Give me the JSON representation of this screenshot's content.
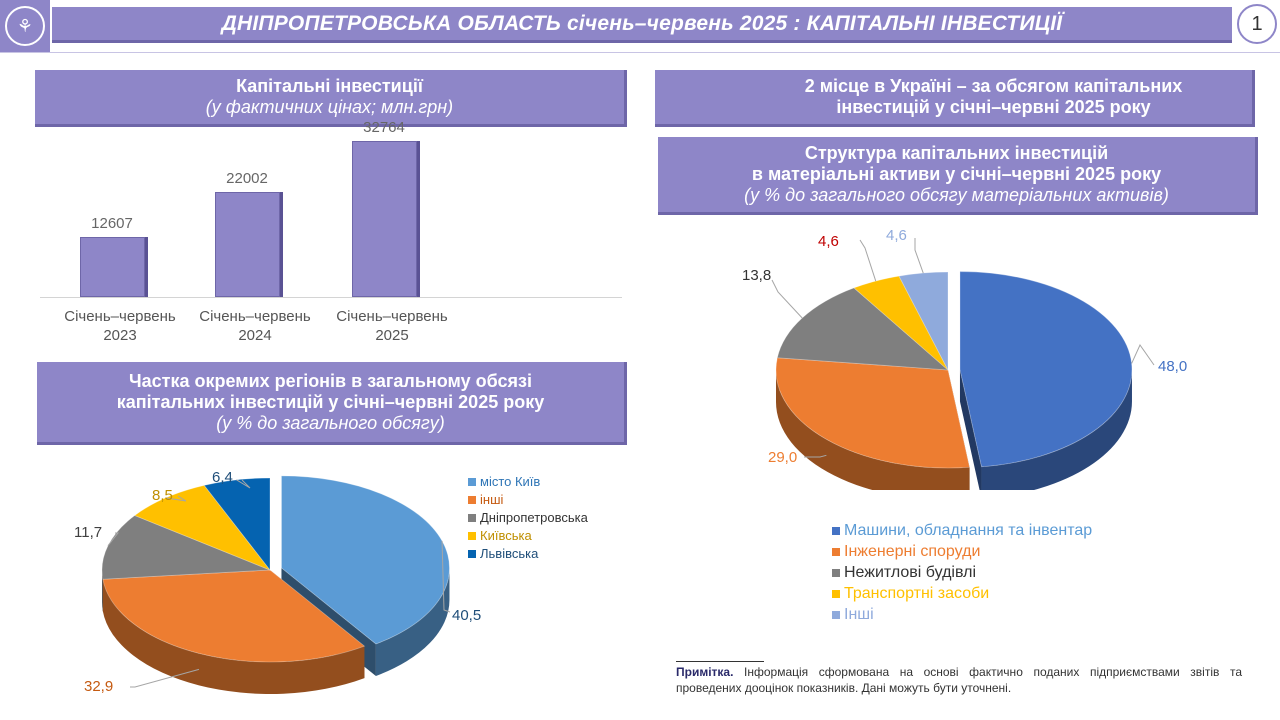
{
  "header": {
    "title": "ДНІПРОПЕТРОВСЬКА ОБЛАСТЬ січень–червень 2025 : КАПІТАЛЬНІ ІНВЕСТИЦІЇ",
    "page_number": "1"
  },
  "panels": {
    "capital_title": "Капітальні інвестиції",
    "capital_subtitle": "(у фактичних цінах; млн.грн)",
    "rank_line1": "2 місце в Україні – за обсягом капітальних",
    "rank_line2": "інвестицій у січні–червні 2025 року",
    "structure_line1": "Структура капітальних інвестицій",
    "structure_line2": "в матеріальні активи у січні–червні 2025 року",
    "structure_subtitle": "(у % до загального обсягу матеріальних активів)",
    "regions_line1": "Частка окремих регіонів в загальному обсязі",
    "regions_line2": "капітальних інвестицій у січні–червні 2025 року",
    "regions_subtitle": "(у % до загального обсягу)"
  },
  "chart_data": [
    {
      "type": "bar",
      "categories": [
        [
          "Січень–червень",
          "2023"
        ],
        [
          "Січень–червень",
          "2024"
        ],
        [
          "Січень–червень",
          "2025"
        ]
      ],
      "values": [
        12607,
        22002,
        32764
      ],
      "value_labels": [
        "12607",
        "22002",
        "32764"
      ],
      "ylim": [
        0,
        40000
      ],
      "grid": false,
      "colors": {
        "bar": "#8e86c8"
      }
    },
    {
      "type": "pie",
      "categories": [
        "Машини, обладнання та інвентар",
        "Інженерні споруди",
        "Нежитлові будівлі",
        "Транспортні засоби",
        "Інші"
      ],
      "values": [
        48.0,
        29.0,
        13.8,
        4.6,
        4.6
      ],
      "value_labels": [
        "48,0",
        "29,0",
        "13,8",
        "4,6",
        "4,6"
      ],
      "colors": [
        "#4472c4",
        "#ed7d31",
        "#7f7f7f",
        "#ffc000",
        "#8faadc"
      ],
      "label_colors": [
        "#4472c4",
        "#ed7d31",
        "#333333",
        "#c00000",
        "#8faadc"
      ],
      "legend_colors": [
        "#5b9bd5",
        "#ed7d31",
        "#333333",
        "#ffc000",
        "#8faadc"
      ],
      "legend": "bottom-right"
    },
    {
      "type": "pie",
      "categories": [
        "місто Київ",
        "інші",
        "Дніпропетровська",
        "Київська",
        "Львівська"
      ],
      "values": [
        40.5,
        32.9,
        11.7,
        8.5,
        6.4
      ],
      "value_labels": [
        "40,5",
        "32,9",
        "11,7",
        "8,5",
        "6,4"
      ],
      "colors": [
        "#5b9bd5",
        "#ed7d31",
        "#7f7f7f",
        "#ffc000",
        "#0563b0"
      ],
      "label_colors": [
        "#1f4e79",
        "#c55a11",
        "#404040",
        "#bf8f00",
        "#1f4e79"
      ],
      "legend_colors": [
        "#2e75b6",
        "#c55a11",
        "#333333",
        "#bf8f00",
        "#1f4e79"
      ],
      "legend": "top-right"
    }
  ],
  "note": {
    "label": "Примітка.",
    "text": "Інформація сформована на основі фактично поданих підприємствами звітів та проведених дооцінок показників. Дані можуть бути уточнені."
  }
}
